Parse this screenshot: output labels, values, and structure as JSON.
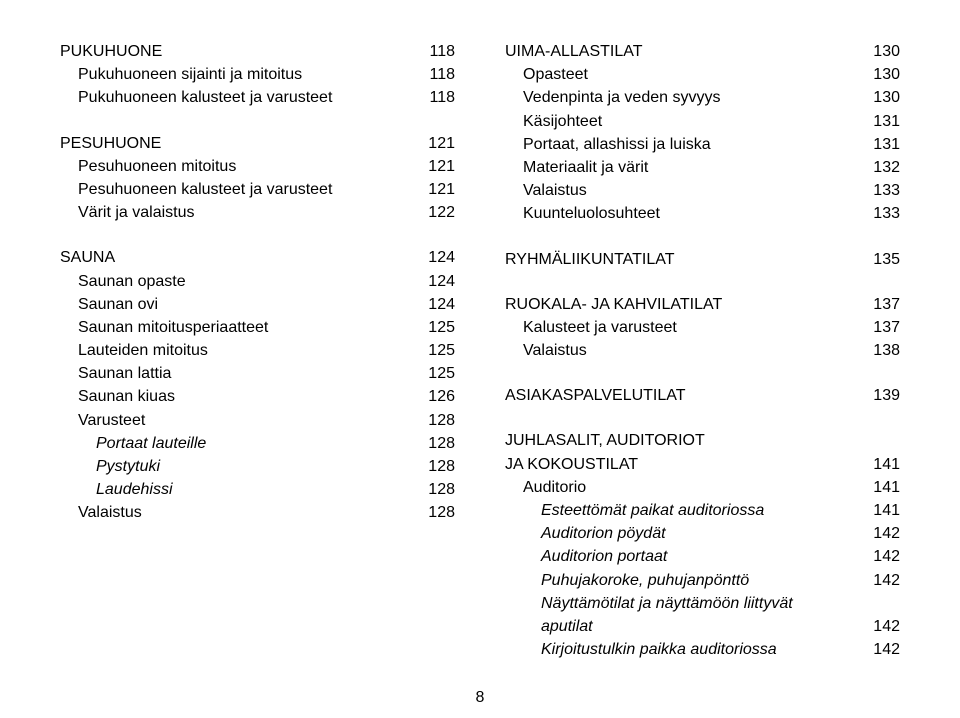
{
  "left": [
    {
      "label": "PUKUHUONE",
      "page": "118",
      "indent": 0
    },
    {
      "label": "Pukuhuoneen sijainti ja mitoitus",
      "page": "118",
      "indent": 1
    },
    {
      "label": "Pukuhuoneen kalusteet ja varusteet",
      "page": "118",
      "indent": 1
    },
    {
      "gap": true
    },
    {
      "label": "PESUHUONE",
      "page": "121",
      "indent": 0
    },
    {
      "label": "Pesuhuoneen mitoitus",
      "page": "121",
      "indent": 1
    },
    {
      "label": "Pesuhuoneen kalusteet ja varusteet",
      "page": "121",
      "indent": 1
    },
    {
      "label": "Värit ja valaistus",
      "page": "122",
      "indent": 1
    },
    {
      "gap": true
    },
    {
      "label": "SAUNA",
      "page": "124",
      "indent": 0
    },
    {
      "label": "Saunan opaste",
      "page": "124",
      "indent": 1
    },
    {
      "label": "Saunan ovi",
      "page": "124",
      "indent": 1
    },
    {
      "label": "Saunan mitoitusperiaatteet",
      "page": "125",
      "indent": 1
    },
    {
      "label": "Lauteiden mitoitus",
      "page": "125",
      "indent": 1
    },
    {
      "label": "Saunan lattia",
      "page": "125",
      "indent": 1
    },
    {
      "label": "Saunan kiuas",
      "page": "126",
      "indent": 1
    },
    {
      "label": "Varusteet",
      "page": "128",
      "indent": 1
    },
    {
      "label": "Portaat lauteille",
      "page": "128",
      "indent": 2,
      "italic": true
    },
    {
      "label": "Pystytuki",
      "page": "128",
      "indent": 2,
      "italic": true
    },
    {
      "label": "Laudehissi",
      "page": "128",
      "indent": 2,
      "italic": true
    },
    {
      "label": "Valaistus",
      "page": "128",
      "indent": 1
    }
  ],
  "right": [
    {
      "label": "UIMA-ALLASTILAT",
      "page": "130",
      "indent": 0
    },
    {
      "label": "Opasteet",
      "page": "130",
      "indent": 1
    },
    {
      "label": "Vedenpinta ja veden syvyys",
      "page": "130",
      "indent": 1
    },
    {
      "label": "Käsijohteet",
      "page": "131",
      "indent": 1
    },
    {
      "label": "Portaat, allashissi ja luiska",
      "page": "131",
      "indent": 1
    },
    {
      "label": "Materiaalit ja värit",
      "page": "132",
      "indent": 1
    },
    {
      "label": "Valaistus",
      "page": "133",
      "indent": 1
    },
    {
      "label": "Kuunteluolosuhteet",
      "page": "133",
      "indent": 1
    },
    {
      "gap": true
    },
    {
      "label": "RYHMÄLIIKUNTATILAT",
      "page": "135",
      "indent": 0
    },
    {
      "gap": true
    },
    {
      "label": "RUOKALA- JA KAHVILATILAT",
      "page": "137",
      "indent": 0
    },
    {
      "label": "Kalusteet ja varusteet",
      "page": "137",
      "indent": 1
    },
    {
      "label": "Valaistus",
      "page": "138",
      "indent": 1
    },
    {
      "gap": true
    },
    {
      "label": "ASIAKASPALVELUTILAT",
      "page": "139",
      "indent": 0
    },
    {
      "gap": true
    },
    {
      "label": "JUHLASALIT, AUDITORIOT",
      "page": "",
      "indent": 0
    },
    {
      "label": "JA KOKOUSTILAT",
      "page": "141",
      "indent": 0
    },
    {
      "label": "Auditorio",
      "page": "141",
      "indent": 1
    },
    {
      "label": "Esteettömät paikat auditoriossa",
      "page": "141",
      "indent": 2,
      "italic": true
    },
    {
      "label": "Auditorion pöydät",
      "page": "142",
      "indent": 2,
      "italic": true
    },
    {
      "label": "Auditorion portaat",
      "page": "142",
      "indent": 2,
      "italic": true
    },
    {
      "label": "Puhujakoroke, puhujanpönttö",
      "page": "142",
      "indent": 2,
      "italic": true
    },
    {
      "label": "Näyttämötilat ja näyttämöön liittyvät",
      "page": "",
      "indent": 2,
      "italic": true
    },
    {
      "label": "aputilat",
      "page": "142",
      "indent": 2,
      "italic": true
    },
    {
      "label": "Kirjoitustulkin paikka auditoriossa",
      "page": "142",
      "indent": 2,
      "italic": true
    }
  ],
  "pageNumber": "8"
}
